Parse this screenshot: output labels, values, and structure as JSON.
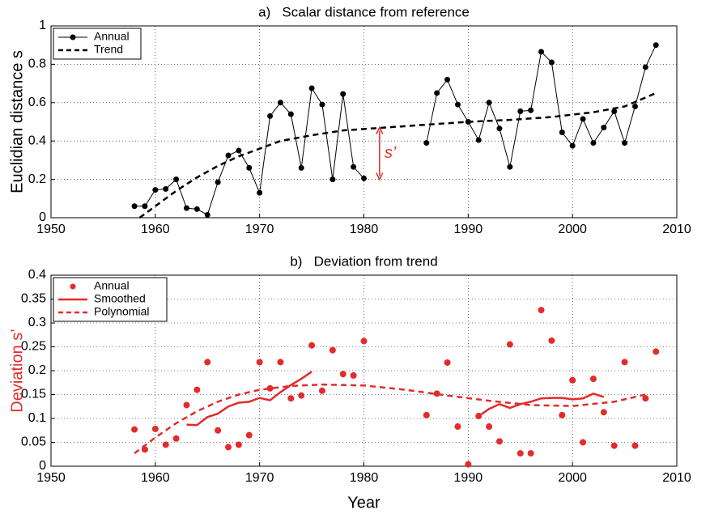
{
  "chart_data": [
    {
      "type": "line",
      "title": "a)   Scalar distance from reference",
      "ylabel": "Euclidian distance s",
      "xlim": [
        1950,
        2010
      ],
      "xticks": [
        1950,
        1960,
        1970,
        1980,
        1990,
        2000,
        2010
      ],
      "ylim": [
        0,
        1
      ],
      "yticks": [
        0,
        0.2,
        0.4,
        0.6,
        0.8,
        1
      ],
      "grid": true,
      "legend": "upper left",
      "annotation": {
        "text": "s’",
        "color": "#e32b2b"
      },
      "series": [
        {
          "name": "Annual",
          "color": "#000000",
          "style": "line-markers",
          "x": [
            1958,
            1959,
            1960,
            1961,
            1962,
            1963,
            1964,
            1965,
            1966,
            1967,
            1968,
            1969,
            1970,
            1971,
            1972,
            1973,
            1974,
            1975,
            1976,
            1977,
            1978,
            1979,
            1980,
            1981,
            1982,
            1983,
            1984,
            1985,
            1986,
            1987,
            1988,
            1989,
            1990,
            1991,
            1992,
            1993,
            1994,
            1995,
            1996,
            1997,
            1998,
            1999,
            2000,
            2001,
            2002,
            2003,
            2004,
            2005,
            2006,
            2007,
            2008
          ],
          "values": [
            0.06,
            0.06,
            0.145,
            0.15,
            0.2,
            0.05,
            0.045,
            0.015,
            0.185,
            0.325,
            0.35,
            0.26,
            0.13,
            0.53,
            0.6,
            0.54,
            0.26,
            0.675,
            0.59,
            0.2,
            0.645,
            0.265,
            0.205,
            null,
            null,
            null,
            null,
            null,
            0.39,
            0.65,
            0.72,
            0.59,
            0.5,
            0.405,
            0.6,
            0.465,
            0.265,
            0.555,
            0.56,
            0.865,
            0.81,
            0.445,
            0.375,
            0.515,
            0.39,
            0.47,
            0.555,
            0.39,
            0.58,
            0.785,
            0.9
          ]
        },
        {
          "name": "Trend",
          "color": "#000000",
          "style": "dashed",
          "x": [
            1958.5,
            1960,
            1962,
            1964,
            1966,
            1968,
            1970,
            1972,
            1975,
            1978,
            1982,
            1986,
            1990,
            1994,
            1998,
            2002,
            2005,
            2008
          ],
          "values": [
            0,
            0.06,
            0.14,
            0.21,
            0.27,
            0.32,
            0.36,
            0.4,
            0.43,
            0.455,
            0.47,
            0.485,
            0.5,
            0.51,
            0.525,
            0.55,
            0.58,
            0.65
          ]
        }
      ]
    },
    {
      "type": "line",
      "title": "b)   Deviation from trend",
      "ylabel": "Deviation s’",
      "ylabel_color": "#e32b2b",
      "xlabel": "Year",
      "xlim": [
        1950,
        2010
      ],
      "xticks": [
        1950,
        1960,
        1970,
        1980,
        1990,
        2000,
        2010
      ],
      "ylim": [
        0,
        0.4
      ],
      "yticks": [
        0,
        0.05,
        0.1,
        0.15,
        0.2,
        0.25,
        0.3,
        0.35,
        0.4
      ],
      "grid": true,
      "legend": "upper left",
      "series": [
        {
          "name": "Annual",
          "color": "#e32b2b",
          "style": "markers",
          "x": [
            1958,
            1959,
            1960,
            1961,
            1962,
            1963,
            1964,
            1965,
            1966,
            1967,
            1968,
            1969,
            1970,
            1971,
            1972,
            1973,
            1974,
            1975,
            1976,
            1977,
            1978,
            1979,
            1980,
            1986,
            1987,
            1988,
            1989,
            1990,
            1991,
            1992,
            1993,
            1994,
            1995,
            1996,
            1997,
            1998,
            1999,
            2000,
            2001,
            2002,
            2003,
            2004,
            2005,
            2006,
            2007,
            2008
          ],
          "values": [
            0.077,
            0.035,
            0.078,
            0.045,
            0.058,
            0.128,
            0.16,
            0.218,
            0.075,
            0.04,
            0.045,
            0.065,
            0.218,
            0.163,
            0.218,
            0.142,
            0.148,
            0.253,
            0.158,
            0.243,
            0.193,
            0.19,
            0.262,
            0.107,
            0.152,
            0.217,
            0.083,
            0.004,
            0.105,
            0.083,
            0.052,
            0.255,
            0.027,
            0.027,
            0.327,
            0.263,
            0.107,
            0.18,
            0.05,
            0.183,
            0.113,
            0.043,
            0.218,
            0.043,
            0.142,
            0.24
          ]
        },
        {
          "name": "Smoothed",
          "color": "#e32b2b",
          "style": "solid",
          "x": [
            1963,
            1964,
            1965,
            1966,
            1967,
            1968,
            1969,
            1970,
            1971,
            1972,
            1973,
            1974,
            1975,
            1976,
            1977,
            1978,
            1979,
            1980,
            1981,
            1982,
            1983,
            1984,
            1985,
            1986,
            1987,
            1988,
            1989,
            1990,
            1991,
            1992,
            1993,
            1994,
            1995,
            1996,
            1997,
            1998,
            1999,
            2000,
            2001,
            2002,
            2003
          ],
          "values": [
            0.087,
            0.086,
            0.103,
            0.11,
            0.125,
            0.133,
            0.135,
            0.143,
            0.138,
            0.155,
            0.17,
            0.183,
            0.198,
            null,
            null,
            null,
            null,
            null,
            null,
            null,
            null,
            null,
            null,
            null,
            null,
            null,
            null,
            null,
            0.105,
            0.12,
            0.13,
            0.122,
            0.13,
            0.135,
            0.142,
            0.143,
            0.143,
            0.14,
            0.142,
            0.152,
            0.145
          ]
        },
        {
          "name": "Polynomial",
          "color": "#e32b2b",
          "style": "dashed",
          "x": [
            1958,
            1960,
            1962,
            1964,
            1966,
            1968,
            1970,
            1973,
            1976,
            1980,
            1984,
            1988,
            1992,
            1996,
            2000,
            2004,
            2007
          ],
          "values": [
            0.027,
            0.06,
            0.09,
            0.115,
            0.135,
            0.15,
            0.16,
            0.168,
            0.171,
            0.169,
            0.16,
            0.148,
            0.137,
            0.128,
            0.126,
            0.135,
            0.15
          ]
        }
      ]
    }
  ]
}
